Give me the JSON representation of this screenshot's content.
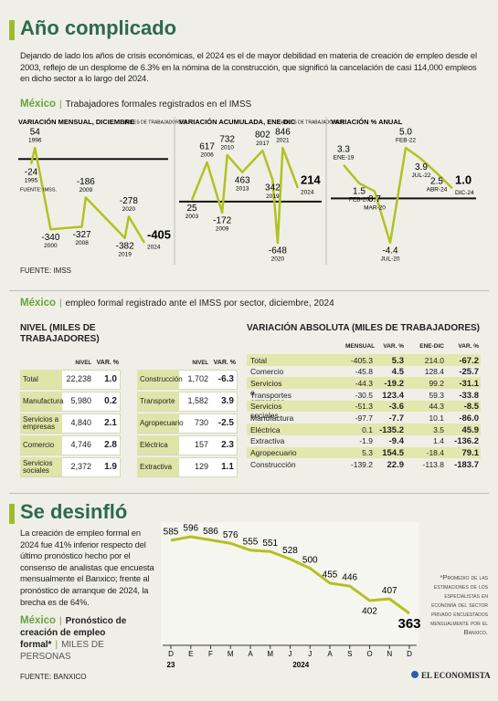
{
  "header": {
    "title": "Año complicado",
    "intro": "Dejando de lado los años de crisis económicas, el 2024 es el de mayor debilidad en materia de creación de empleo desde el 2003, reflejo de un desplome de 6.3% en la nómina de la construcción, que significó la cancelación de casi 114,000 empleos en dicho sector a lo largo del 2024."
  },
  "section1": {
    "country": "México",
    "title": "Trabajadores formales registrados en el IMSS",
    "source": "FUENTE: IMSS"
  },
  "chart_data": [
    {
      "type": "line",
      "title": "VARIACIÓN MENSUAL, DICIEMBRE",
      "subtitle": "(MILES DE TRABAJADORES)",
      "x": [
        1995,
        1996,
        2000,
        2008,
        2009,
        2019,
        2020,
        2024
      ],
      "values": [
        -24,
        54,
        -340,
        -327,
        -186,
        -382,
        -278,
        -405
      ],
      "color": "#b3c120",
      "note": "FUENTE: IMSS."
    },
    {
      "type": "line",
      "title": "VARIACIÓN ACUMULADA, ENE-DIC",
      "subtitle": "(MILES DE TRABAJADORES)",
      "x": [
        2003,
        2006,
        2009,
        2010,
        2013,
        2017,
        2019,
        2020,
        2021,
        2024
      ],
      "values": [
        25,
        617,
        -172,
        732,
        463,
        802,
        342,
        -648,
        846,
        214
      ],
      "color": "#b3c120"
    },
    {
      "type": "line",
      "title": "VARIACIÓN % ANUAL",
      "categories": [
        "ENE-19",
        "FEB-20",
        "MAR-20",
        "JUL-20",
        "FEB-22",
        "JUL-22",
        "ABR-24",
        "DIC-24"
      ],
      "values": [
        3.3,
        1.5,
        0.7,
        -4.4,
        5.0,
        3.9,
        2.5,
        1.0
      ],
      "value_labels": [
        "3.3",
        "1.5",
        "0.7",
        "-4.4",
        "5.0",
        "3.9",
        "2.5",
        "1.0"
      ],
      "color": "#b3c120"
    },
    {
      "type": "line",
      "categories": [
        "D",
        "E",
        "F",
        "M",
        "A",
        "M",
        "J",
        "J",
        "A",
        "S",
        "O",
        "N",
        "D"
      ],
      "values": [
        585,
        596,
        586,
        576,
        555,
        551,
        528,
        500,
        455,
        446,
        402,
        407,
        363
      ],
      "year_labels": [
        "23",
        "2024"
      ],
      "color": "#b3c120"
    }
  ],
  "section2": {
    "country": "México",
    "title": "empleo formal registrado ante el IMSS por sector, diciembre, 2024",
    "level_table": {
      "title": "NIVEL (MILES DE TRABAJADORES)",
      "headers": [
        "NIVEL",
        "VAR. %"
      ],
      "rows": [
        [
          "Total",
          "22,238",
          "1.0"
        ],
        [
          "Manufactura",
          "5,980",
          "0.2"
        ],
        [
          "Servicios a empresas",
          "4,840",
          "2.1"
        ],
        [
          "Comercio",
          "4,746",
          "2.8"
        ],
        [
          "Servicios sociales",
          "2,372",
          "1.9"
        ],
        [
          "Construcción",
          "1,702",
          "-6.3"
        ],
        [
          "Transporte",
          "1,582",
          "3.9"
        ],
        [
          "Agropecuario",
          "730",
          "-2.5"
        ],
        [
          "Eléctrica",
          "157",
          "2.3"
        ],
        [
          "Extractiva",
          "129",
          "1.1"
        ]
      ]
    },
    "change_table": {
      "title": "VARIACIÓN ABSOLUTA (MILES DE TRABAJADORES)",
      "headers": [
        "MENSUAL",
        "VAR. %",
        "ENE-DIC",
        "VAR. %"
      ],
      "rows": [
        [
          "Total",
          "-405.3",
          "5.3",
          "214.0",
          "-67.2"
        ],
        [
          "Comercio",
          "-45.8",
          "4.5",
          "128.4",
          "-25.7"
        ],
        [
          "Servicios a empresas",
          "-44.3",
          "-19.2",
          "99.2",
          "-31.1"
        ],
        [
          "Transportes",
          "-30.5",
          "123.4",
          "59.3",
          "-33.8"
        ],
        [
          "Servicios sociales",
          "-51.3",
          "-3.6",
          "44.3",
          "-8.5"
        ],
        [
          "Manufactura",
          "-97.7",
          "-7.7",
          "10.1",
          "-86.0"
        ],
        [
          "Eléctrica",
          "0.1",
          "-135.2",
          "3.5",
          "45.9"
        ],
        [
          "Extractiva",
          "-1.9",
          "-9.4",
          "1.4",
          "-136.2"
        ],
        [
          "Agropecuario",
          "5.3",
          "154.5",
          "-18.4",
          "79.1"
        ],
        [
          "Construcción",
          "-139.2",
          "22.9",
          "-113.8",
          "-183.7"
        ]
      ]
    }
  },
  "section3": {
    "title": "Se desinfló",
    "text": "La creación de empleo formal en 2024 fue 41% inferior respecto del último pronóstico hecho por el consenso de analistas que encuesta mensualmente el Banxico; frente al pronóstico de arranque de 2024, la brecha es de 64%.",
    "country": "México",
    "chart_title": "Pronóstico de creación de empleo formal*",
    "unit": "MILES DE PERSONAS",
    "note": "*Promedio de las estimaciones de los especialistas en economía del sector privado encuestados mensualmente por el Banxico.",
    "source": "FUENTE: BANXICO",
    "brand": "EL ECONOMISTA"
  }
}
